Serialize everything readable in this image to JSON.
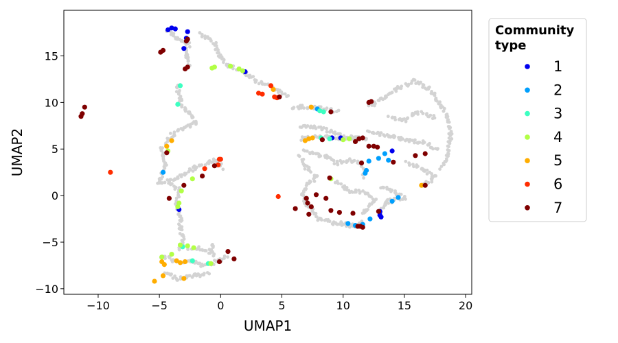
{
  "chart_data": {
    "type": "scatter",
    "xlabel": "UMAP1",
    "ylabel": "UMAP2",
    "xlim": [
      -12.8,
      20.5
    ],
    "ylim": [
      -10.6,
      19.9
    ],
    "x_ticks": [
      -10,
      -5,
      0,
      5,
      10,
      15,
      20
    ],
    "y_ticks": [
      -10,
      -5,
      0,
      5,
      10,
      15
    ],
    "legend": {
      "title": [
        "Community",
        "type"
      ],
      "position": "outside-right"
    },
    "background_color": "#d3d3d3",
    "background_paths": [
      [
        [
          -1.7,
          17.5
        ],
        [
          -0.5,
          16.3
        ],
        [
          0,
          15
        ],
        [
          0.5,
          14
        ],
        [
          2,
          13.3
        ],
        [
          3,
          12.2
        ],
        [
          4.5,
          11.5
        ],
        [
          5.5,
          10.7
        ]
      ],
      [
        [
          -4.3,
          17.8
        ],
        [
          -3.5,
          16.8
        ],
        [
          -2.6,
          16.3
        ],
        [
          -2.8,
          15
        ],
        [
          -2.5,
          14
        ]
      ],
      [
        [
          -3.6,
          11.7
        ],
        [
          -3.3,
          10.5
        ],
        [
          -3.2,
          9.7
        ],
        [
          -2.5,
          8.8
        ],
        [
          -2,
          7.8
        ],
        [
          -3,
          7.2
        ],
        [
          -4,
          6.5
        ],
        [
          -4.5,
          5.5
        ]
      ],
      [
        [
          -4.8,
          5.2
        ],
        [
          -4.5,
          3.5
        ],
        [
          -5,
          1.3
        ],
        [
          -3.5,
          1.9
        ],
        [
          -2,
          3
        ],
        [
          -0.5,
          3.8
        ],
        [
          0.1,
          3
        ]
      ],
      [
        [
          -4.3,
          1.5
        ],
        [
          -3.3,
          0.5
        ],
        [
          -3.6,
          -1
        ],
        [
          -3.3,
          -2.2
        ],
        [
          -3.3,
          -3.5
        ],
        [
          -3,
          -5
        ],
        [
          -3.4,
          -6
        ]
      ],
      [
        [
          -4.8,
          -6.5
        ],
        [
          -3.8,
          -7
        ],
        [
          -2.3,
          -7.1
        ],
        [
          -1.5,
          -7.5
        ],
        [
          -0.5,
          -7.2
        ],
        [
          0.5,
          -6.6
        ]
      ],
      [
        [
          -4.5,
          -8.3
        ],
        [
          -3.5,
          -8.9
        ],
        [
          -2.2,
          -8.6
        ],
        [
          -1,
          -8.4
        ]
      ],
      [
        [
          -2.8,
          -5.6
        ],
        [
          -1.5,
          -5.7
        ],
        [
          -0.5,
          -6.3
        ],
        [
          -0.8,
          -5.3
        ]
      ],
      [
        [
          5.8,
          9.5
        ],
        [
          7.5,
          9.5
        ],
        [
          8.9,
          9.2
        ],
        [
          9.5,
          9
        ]
      ],
      [
        [
          6.5,
          7.5
        ],
        [
          8.3,
          7.2
        ],
        [
          9.7,
          6.5
        ],
        [
          11,
          6.2
        ],
        [
          12,
          6
        ]
      ],
      [
        [
          6.5,
          6.1
        ],
        [
          8,
          6.3
        ],
        [
          9.5,
          6.2
        ],
        [
          11.5,
          6.1
        ]
      ],
      [
        [
          6.5,
          4.2
        ],
        [
          7,
          3
        ],
        [
          7.8,
          2
        ],
        [
          7,
          1
        ],
        [
          6.7,
          0
        ],
        [
          7,
          -1
        ],
        [
          8,
          -2.5
        ],
        [
          9.5,
          -3
        ],
        [
          11,
          -3.3
        ]
      ],
      [
        [
          6.8,
          4.8
        ],
        [
          8.5,
          4.2
        ],
        [
          9.5,
          3.5
        ],
        [
          10.5,
          3.8
        ],
        [
          11.5,
          3.3
        ],
        [
          11.8,
          2
        ]
      ],
      [
        [
          12,
          6.8
        ],
        [
          13.5,
          6.5
        ],
        [
          15,
          6
        ],
        [
          16.5,
          5.7
        ],
        [
          17.7,
          4.9
        ]
      ],
      [
        [
          12.2,
          9.5
        ],
        [
          13.2,
          10.5
        ],
        [
          14.3,
          11.4
        ],
        [
          15.8,
          12.3
        ],
        [
          17,
          11.5
        ],
        [
          17.8,
          10
        ],
        [
          18.5,
          8.5
        ],
        [
          18.8,
          6.5
        ],
        [
          18.6,
          4.5
        ],
        [
          18,
          3
        ]
      ],
      [
        [
          13.8,
          8.5
        ],
        [
          15,
          8
        ],
        [
          16,
          9
        ],
        [
          17.5,
          8.3
        ]
      ],
      [
        [
          15.2,
          3.5
        ],
        [
          16.5,
          2.8
        ],
        [
          17.5,
          2
        ],
        [
          16.6,
          1.1
        ]
      ],
      [
        [
          13,
          1
        ],
        [
          14,
          0.5
        ],
        [
          15,
          -0.2
        ],
        [
          13.5,
          -0.7
        ],
        [
          13,
          -1.8
        ]
      ],
      [
        [
          9.5,
          1.5
        ],
        [
          10.5,
          0.5
        ],
        [
          12,
          0.3
        ],
        [
          12.6,
          -0.5
        ],
        [
          11.5,
          -2
        ]
      ],
      [
        [
          9.8,
          -2.8
        ],
        [
          10.5,
          -3.2
        ],
        [
          11.2,
          -3.3
        ],
        [
          11.5,
          -2.8
        ]
      ]
    ],
    "series": [
      {
        "name": "1",
        "color": "#0000ee",
        "points": [
          [
            -4.3,
            17.8
          ],
          [
            -4,
            18
          ],
          [
            -3.7,
            17.9
          ],
          [
            -2.7,
            17.6
          ],
          [
            -2.8,
            16.9
          ],
          [
            -3,
            15.8
          ],
          [
            2,
            13.3
          ],
          [
            9.1,
            6.2
          ],
          [
            9.8,
            6.2
          ],
          [
            13,
            -2.1
          ],
          [
            13.1,
            -2.3
          ],
          [
            13,
            -1.7
          ],
          [
            14,
            4.8
          ],
          [
            -3.4,
            -1.5
          ]
        ]
      },
      {
        "name": "2",
        "color": "#009ffd",
        "points": [
          [
            -4.7,
            2.5
          ],
          [
            7.9,
            9.3
          ],
          [
            11.8,
            2.4
          ],
          [
            11.9,
            2.7
          ],
          [
            12.1,
            3.7
          ],
          [
            12.9,
            4
          ],
          [
            13.4,
            4.5
          ],
          [
            13.7,
            3.8
          ],
          [
            14,
            -0.6
          ],
          [
            14.5,
            -0.2
          ],
          [
            10.4,
            -3
          ],
          [
            11,
            -3.2
          ],
          [
            11.6,
            -3.1
          ],
          [
            12.2,
            -2.5
          ]
        ]
      },
      {
        "name": "3",
        "color": "#3dffc1",
        "points": [
          [
            -3.3,
            11.8
          ],
          [
            -3.5,
            9.8
          ],
          [
            8.1,
            9.1
          ],
          [
            8.4,
            9
          ],
          [
            8.2,
            6.2
          ],
          [
            8.9,
            6.1
          ],
          [
            -3.1,
            -5.5
          ],
          [
            -2.3,
            -7
          ],
          [
            -1,
            -7.3
          ]
        ]
      },
      {
        "name": "4",
        "color": "#b2ff46",
        "points": [
          [
            -0.5,
            13.8
          ],
          [
            -0.7,
            13.7
          ],
          [
            0.8,
            13.9
          ],
          [
            1.5,
            13.6
          ],
          [
            1.8,
            13.4
          ],
          [
            10,
            6
          ],
          [
            10.5,
            6.1
          ],
          [
            9,
            1.8
          ],
          [
            -4.3,
            4.8
          ],
          [
            -2.3,
            1.8
          ],
          [
            -3.4,
            -0.8
          ],
          [
            -3.5,
            -1.2
          ],
          [
            -3.3,
            -5.3
          ],
          [
            -2.7,
            -5.4
          ],
          [
            -2.2,
            -5.6
          ],
          [
            -4.8,
            -6.6
          ],
          [
            -4,
            -6.3
          ],
          [
            -0.8,
            -7.3
          ],
          [
            -3.2,
            0.5
          ]
        ]
      },
      {
        "name": "5",
        "color": "#ffad00",
        "points": [
          [
            4.3,
            11.4
          ],
          [
            7.4,
            9.5
          ],
          [
            6.9,
            5.9
          ],
          [
            7.2,
            6.1
          ],
          [
            7.5,
            6.2
          ],
          [
            -4.4,
            5.3
          ],
          [
            -4.0,
            5.9
          ],
          [
            -4.8,
            -7.1
          ],
          [
            -4.6,
            -7.4
          ],
          [
            -5.4,
            -9.2
          ],
          [
            -4.7,
            -8.6
          ],
          [
            -3,
            -8.9
          ],
          [
            -3.6,
            -7
          ],
          [
            -3.3,
            -7.2
          ],
          [
            -2.9,
            -7.1
          ],
          [
            16.4,
            1.1
          ]
        ]
      },
      {
        "name": "6",
        "color": "#ff2d00",
        "points": [
          [
            -9,
            2.5
          ],
          [
            3.1,
            11
          ],
          [
            3.4,
            10.9
          ],
          [
            4.1,
            11.8
          ],
          [
            4.4,
            10.6
          ],
          [
            4.6,
            10.5
          ],
          [
            4.7,
            -0.1
          ],
          [
            -1.3,
            2.9
          ],
          [
            -0.1,
            3.9
          ],
          [
            -0.2,
            3.3
          ],
          [
            0,
            3.9
          ]
        ]
      },
      {
        "name": "7",
        "color": "#7f0000",
        "points": [
          [
            -11.1,
            9.5
          ],
          [
            -11.3,
            8.8
          ],
          [
            -11.4,
            8.5
          ],
          [
            -4.9,
            15.4
          ],
          [
            -4.7,
            15.6
          ],
          [
            -2.8,
            16.6
          ],
          [
            -2.7,
            16.8
          ],
          [
            -2.7,
            13.8
          ],
          [
            -2.9,
            13.6
          ],
          [
            4.8,
            10.6
          ],
          [
            9,
            9
          ],
          [
            8.3,
            6
          ],
          [
            11,
            5.8
          ],
          [
            11.3,
            6.1
          ],
          [
            11.6,
            6.2
          ],
          [
            12.1,
            5.3
          ],
          [
            12.5,
            5.3
          ],
          [
            12.8,
            5.2
          ],
          [
            11.5,
            3.5
          ],
          [
            14.1,
            3.6
          ],
          [
            15.9,
            4.3
          ],
          [
            16.7,
            4.5
          ],
          [
            16.7,
            1.1
          ],
          [
            12.1,
            10
          ],
          [
            12.3,
            10.1
          ],
          [
            6.1,
            -1.4
          ],
          [
            7,
            -0.3
          ],
          [
            7.1,
            -0.8
          ],
          [
            7.2,
            -2
          ],
          [
            7.4,
            -1.2
          ],
          [
            7.8,
            0.1
          ],
          [
            8.6,
            -0.3
          ],
          [
            8.9,
            1.9
          ],
          [
            9,
            -1.6
          ],
          [
            9.7,
            -1.8
          ],
          [
            10.8,
            -1.9
          ],
          [
            11.2,
            -3.3
          ],
          [
            11.4,
            -3.3
          ],
          [
            11.6,
            -3.4
          ],
          [
            12.9,
            -1.7
          ],
          [
            -4.2,
            -0.3
          ],
          [
            -4.4,
            4.6
          ],
          [
            -3,
            1.1
          ],
          [
            -1.5,
            2.1
          ],
          [
            -0.5,
            3.2
          ],
          [
            -0.1,
            -7.1
          ],
          [
            0.6,
            -6
          ],
          [
            1.1,
            -6.8
          ]
        ]
      }
    ]
  }
}
